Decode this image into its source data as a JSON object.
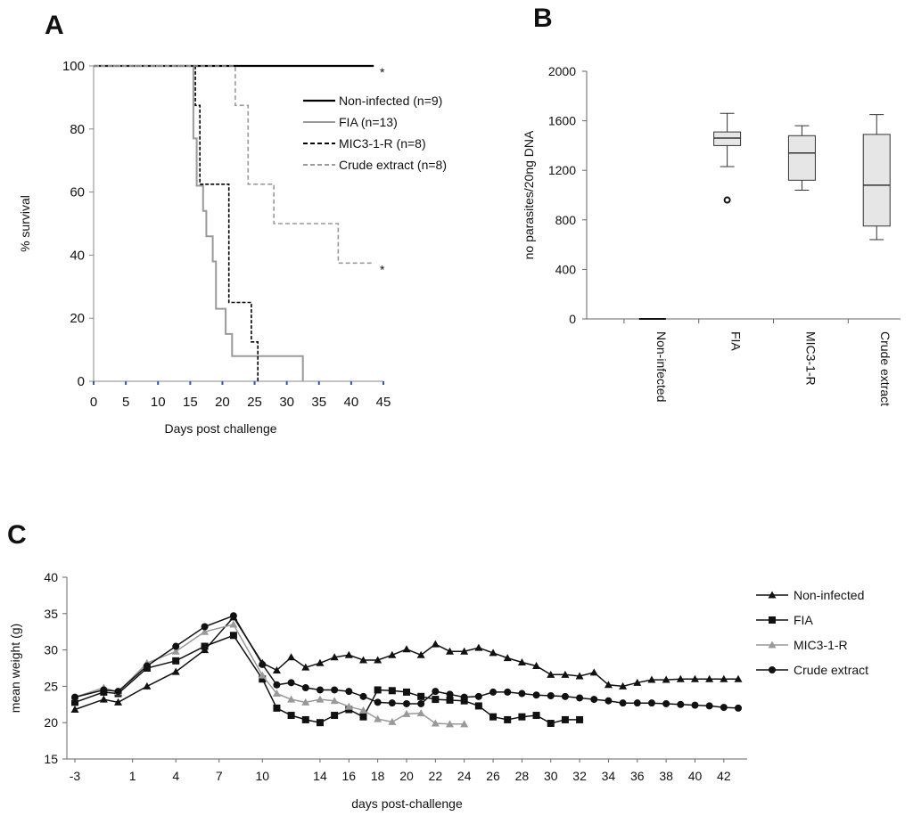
{
  "figure": {
    "panel_a_letter": "A",
    "panel_b_letter": "B",
    "panel_c_letter": "C"
  },
  "chart_data": [
    {
      "panel": "A",
      "type": "line",
      "subtype": "kaplan-meier",
      "xlabel": "Days post challenge",
      "ylabel": "% survival",
      "xlim": [
        0,
        45
      ],
      "ylim": [
        0,
        100
      ],
      "xticks": [
        0,
        5,
        10,
        15,
        20,
        25,
        30,
        35,
        40,
        45
      ],
      "yticks": [
        0,
        20,
        40,
        60,
        80,
        100
      ],
      "series": [
        {
          "name": "Non-infected (n=9)",
          "color": "#000000",
          "dash": "solid",
          "steps": [
            [
              0,
              100
            ],
            [
              43.5,
              100
            ]
          ]
        },
        {
          "name": "FIA (n=13)",
          "color": "#9a9a9a",
          "dash": "solid",
          "steps": [
            [
              0,
              100
            ],
            [
              15.5,
              100
            ],
            [
              15.5,
              77
            ],
            [
              16,
              77
            ],
            [
              16,
              62
            ],
            [
              17,
              62
            ],
            [
              17,
              54
            ],
            [
              17.5,
              54
            ],
            [
              17.5,
              46
            ],
            [
              18.5,
              46
            ],
            [
              18.5,
              38
            ],
            [
              19,
              38
            ],
            [
              19,
              23
            ],
            [
              20.5,
              23
            ],
            [
              20.5,
              15
            ],
            [
              21.5,
              15
            ],
            [
              21.5,
              8
            ],
            [
              32.5,
              8
            ],
            [
              32.5,
              0
            ]
          ]
        },
        {
          "name": "MIC3-1-R (n=8)",
          "color": "#000000",
          "dash": "dash",
          "steps": [
            [
              0,
              100
            ],
            [
              15.8,
              100
            ],
            [
              15.8,
              87.5
            ],
            [
              16.5,
              87.5
            ],
            [
              16.5,
              62.5
            ],
            [
              21,
              62.5
            ],
            [
              21,
              25
            ],
            [
              24.5,
              25
            ],
            [
              24.5,
              12.5
            ],
            [
              25.5,
              12.5
            ],
            [
              25.5,
              0
            ]
          ]
        },
        {
          "name": "Crude extract (n=8)",
          "color": "#9a9a9a",
          "dash": "dash",
          "steps": [
            [
              0,
              100
            ],
            [
              22,
              100
            ],
            [
              22,
              87.5
            ],
            [
              24,
              87.5
            ],
            [
              24,
              62.5
            ],
            [
              28,
              62.5
            ],
            [
              28,
              50
            ],
            [
              38,
              50
            ],
            [
              38,
              37.5
            ],
            [
              43.5,
              37.5
            ]
          ]
        }
      ],
      "annotations": [
        {
          "text": "*",
          "x": 45,
          "y": 100
        },
        {
          "text": "*",
          "x": 45,
          "y": 37.5
        }
      ]
    },
    {
      "panel": "B",
      "type": "box",
      "ylabel": "no parasites/20ng DNA",
      "ylim": [
        0,
        2000
      ],
      "yticks": [
        0,
        400,
        800,
        1200,
        1600,
        2000
      ],
      "categories": [
        "Non-infected",
        "FIA",
        "MIC3-1-R",
        "Crude extract"
      ],
      "boxes": [
        {
          "category": "Non-infected",
          "min": 0,
          "q1": 0,
          "median": 0,
          "q3": 0,
          "max": 0,
          "outliers": []
        },
        {
          "category": "FIA",
          "min": 1230,
          "q1": 1400,
          "median": 1460,
          "q3": 1510,
          "max": 1660,
          "outliers": [
            960
          ]
        },
        {
          "category": "MIC3-1-R",
          "min": 1040,
          "q1": 1120,
          "median": 1340,
          "q3": 1480,
          "max": 1560,
          "outliers": []
        },
        {
          "category": "Crude extract",
          "min": 640,
          "q1": 750,
          "median": 1080,
          "q3": 1490,
          "max": 1650,
          "outliers": []
        }
      ]
    },
    {
      "panel": "C",
      "type": "line",
      "xlabel": "days post-challenge",
      "ylabel": "mean weight (g)",
      "xlim": [
        -3,
        43
      ],
      "ylim": [
        15,
        40
      ],
      "xticks": [
        -3,
        1,
        4,
        7,
        10,
        14,
        16,
        18,
        20,
        22,
        24,
        26,
        28,
        30,
        32,
        34,
        36,
        38,
        40,
        42
      ],
      "xtick_labels": [
        "-3",
        "1",
        "4",
        "7",
        "10",
        "14",
        "16",
        "18",
        "20",
        "22",
        "24",
        "26",
        "28",
        "30",
        "32",
        "34",
        "36",
        "38",
        "40",
        "42"
      ],
      "yticks": [
        15,
        20,
        25,
        30,
        35,
        40
      ],
      "series": [
        {
          "name": "Non-infected",
          "color": "#111111",
          "marker": "triangle",
          "x": [
            -3,
            -1,
            0,
            2,
            4,
            6,
            8,
            10,
            11,
            12,
            13,
            14,
            15,
            16,
            17,
            18,
            19,
            20,
            21,
            22,
            23,
            24,
            25,
            26,
            27,
            28,
            29,
            30,
            31,
            32,
            33,
            34,
            35,
            36,
            37,
            38,
            39,
            40,
            41,
            42,
            43
          ],
          "y": [
            21.8,
            23.2,
            22.8,
            25,
            27,
            30,
            34.5,
            28.2,
            27.2,
            29,
            27.6,
            28.2,
            29,
            29.3,
            28.6,
            28.6,
            29.3,
            30.1,
            29.3,
            30.8,
            29.8,
            29.8,
            30.3,
            29.6,
            28.9,
            28.3,
            27.8,
            26.6,
            26.6,
            26.4,
            26.9,
            25.2,
            25,
            25.5,
            25.9,
            25.9,
            26,
            26,
            26,
            26,
            26
          ]
        },
        {
          "name": "FIA",
          "color": "#111111",
          "marker": "square",
          "x": [
            -3,
            -1,
            0,
            2,
            4,
            6,
            8,
            10,
            11,
            12,
            13,
            14,
            15,
            16,
            17,
            18,
            19,
            20,
            21,
            22,
            23,
            24,
            25,
            26,
            27,
            28,
            29,
            30,
            31,
            32
          ],
          "y": [
            22.8,
            24.2,
            24,
            27.5,
            28.5,
            30.5,
            32,
            26,
            22,
            21,
            20.4,
            20,
            21,
            21.8,
            20.8,
            24.5,
            24.4,
            24.2,
            23.6,
            23.2,
            23.1,
            23,
            22.3,
            20.8,
            20.4,
            20.8,
            21,
            19.9,
            20.4,
            20.4
          ]
        },
        {
          "name": "MIC3-1-R",
          "color": "#999999",
          "marker": "triangle",
          "x": [
            -3,
            -1,
            0,
            2,
            4,
            6,
            8,
            10,
            11,
            12,
            13,
            14,
            15,
            16,
            17,
            18,
            19,
            20,
            21,
            22,
            23,
            24
          ],
          "y": [
            23.5,
            24.8,
            24.2,
            28.2,
            29.8,
            32.5,
            33.5,
            26.5,
            24,
            23.2,
            22.8,
            23.2,
            23,
            22.2,
            21.7,
            20.5,
            20.1,
            21.2,
            21.3,
            19.9,
            19.8,
            19.8
          ]
        },
        {
          "name": "Crude extract",
          "color": "#111111",
          "marker": "circle",
          "x": [
            -3,
            -1,
            0,
            2,
            4,
            6,
            8,
            10,
            11,
            12,
            13,
            14,
            15,
            16,
            17,
            18,
            19,
            20,
            21,
            22,
            23,
            24,
            25,
            26,
            27,
            28,
            29,
            30,
            31,
            32,
            33,
            34,
            35,
            36,
            37,
            38,
            39,
            40,
            41,
            42,
            43
          ],
          "y": [
            23.5,
            24.5,
            24.3,
            27.8,
            30.5,
            33.2,
            34.7,
            28,
            25.2,
            25.5,
            24.8,
            24.5,
            24.5,
            24.3,
            23.6,
            22.8,
            22.7,
            22.6,
            22.6,
            24.3,
            23.9,
            23.5,
            23.6,
            24.2,
            24.2,
            24,
            23.8,
            23.7,
            23.6,
            23.4,
            23.2,
            23,
            22.7,
            22.7,
            22.7,
            22.6,
            22.5,
            22.4,
            22.3,
            22.1,
            22
          ]
        }
      ]
    }
  ]
}
